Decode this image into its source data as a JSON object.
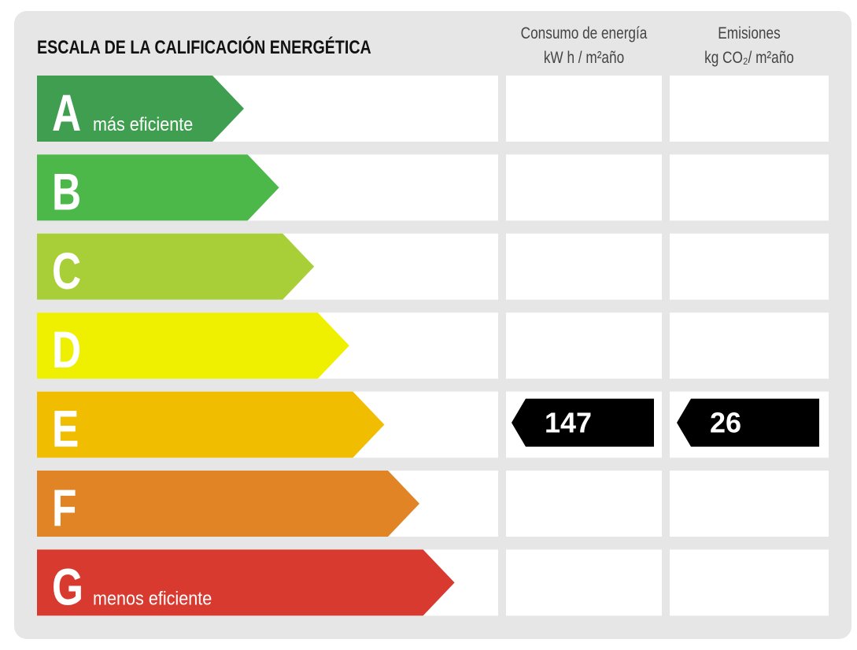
{
  "header": {
    "title": "ESCALA DE LA CALIFICACIÓN ENERGÉTICA",
    "columns": [
      {
        "title": "Consumo de energía",
        "unit": "kW h / m²año"
      },
      {
        "title": "Emisiones",
        "unit": "kg CO₂/ m²año"
      }
    ]
  },
  "rows": [
    {
      "letter": "A",
      "note": "más eficiente",
      "color": "#3f9e4f"
    },
    {
      "letter": "B",
      "color": "#4cb84a"
    },
    {
      "letter": "C",
      "color": "#a8cf38"
    },
    {
      "letter": "D",
      "color": "#eef000"
    },
    {
      "letter": "E",
      "color": "#f0bd00",
      "values": [
        147,
        26
      ]
    },
    {
      "letter": "F",
      "color": "#e08426"
    },
    {
      "letter": "G",
      "note": "menos eficiente",
      "color": "#d93a30"
    }
  ]
}
